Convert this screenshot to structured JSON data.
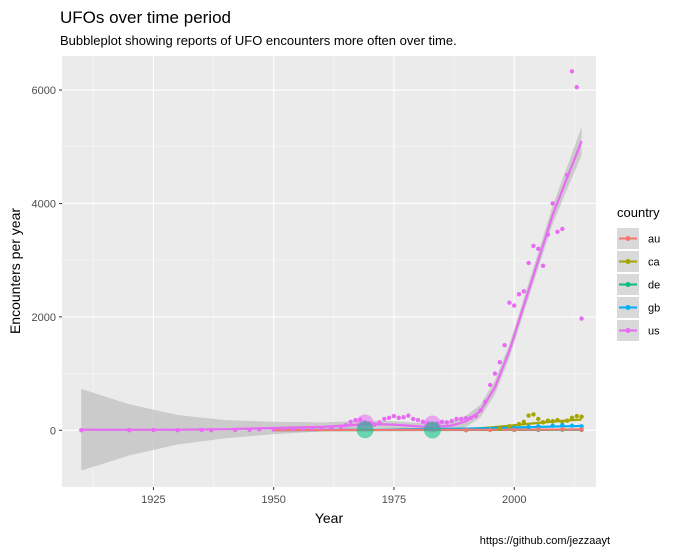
{
  "chart_data": {
    "type": "scatter",
    "title": "UFOs over time period",
    "subtitle": "Bubbleplot showing reports of UFO encounters more often over time.",
    "xlabel": "Year",
    "ylabel": "Encounters per year",
    "caption": "https://github.com/jezzaayt",
    "xlim": [
      1906,
      2017
    ],
    "ylim": [
      -1000,
      6600
    ],
    "x_ticks": [
      1925,
      1950,
      1975,
      2000
    ],
    "y_ticks": [
      0,
      2000,
      4000,
      6000
    ],
    "grid": true,
    "legend": {
      "title": "country",
      "position": "right",
      "entries": [
        "au",
        "ca",
        "de",
        "gb",
        "us"
      ]
    },
    "colors": {
      "au": "#F8766D",
      "ca": "#A3A500",
      "de": "#00BF7D",
      "gb": "#00B0F6",
      "us": "#E76BF3"
    },
    "series": [
      {
        "name": "us",
        "points": [
          [
            1910,
            2
          ],
          [
            1920,
            1
          ],
          [
            1925,
            3
          ],
          [
            1930,
            2
          ],
          [
            1935,
            4
          ],
          [
            1937,
            3
          ],
          [
            1942,
            6
          ],
          [
            1945,
            9
          ],
          [
            1947,
            18
          ],
          [
            1950,
            12
          ],
          [
            1952,
            30
          ],
          [
            1954,
            22
          ],
          [
            1956,
            25
          ],
          [
            1958,
            28
          ],
          [
            1960,
            40
          ],
          [
            1962,
            45
          ],
          [
            1964,
            60
          ],
          [
            1965,
            90
          ],
          [
            1966,
            150
          ],
          [
            1967,
            180
          ],
          [
            1968,
            190
          ],
          [
            1969,
            140
          ],
          [
            1970,
            120
          ],
          [
            1971,
            100
          ],
          [
            1972,
            140
          ],
          [
            1973,
            200
          ],
          [
            1974,
            220
          ],
          [
            1975,
            250
          ],
          [
            1976,
            220
          ],
          [
            1977,
            230
          ],
          [
            1978,
            260
          ],
          [
            1979,
            200
          ],
          [
            1980,
            180
          ],
          [
            1981,
            150
          ],
          [
            1982,
            130
          ],
          [
            1983,
            110
          ],
          [
            1984,
            120
          ],
          [
            1985,
            150
          ],
          [
            1986,
            140
          ],
          [
            1987,
            160
          ],
          [
            1988,
            200
          ],
          [
            1989,
            200
          ],
          [
            1990,
            210
          ],
          [
            1991,
            220
          ],
          [
            1992,
            250
          ],
          [
            1993,
            350
          ],
          [
            1994,
            500
          ],
          [
            1995,
            800
          ],
          [
            1996,
            1000
          ],
          [
            1997,
            1200
          ],
          [
            1998,
            1500
          ],
          [
            1999,
            2250
          ],
          [
            2000,
            2200
          ],
          [
            2001,
            2400
          ],
          [
            2002,
            2450
          ],
          [
            2003,
            2950
          ],
          [
            2004,
            3250
          ],
          [
            2005,
            3200
          ],
          [
            2006,
            2900
          ],
          [
            2007,
            3450
          ],
          [
            2008,
            4000
          ],
          [
            2009,
            3500
          ],
          [
            2010,
            3550
          ],
          [
            2011,
            4500
          ],
          [
            2012,
            6330
          ],
          [
            2013,
            6050
          ],
          [
            2014,
            1970
          ]
        ],
        "fit": [
          [
            1910,
            10
          ],
          [
            1920,
            8
          ],
          [
            1930,
            10
          ],
          [
            1940,
            20
          ],
          [
            1950,
            40
          ],
          [
            1960,
            60
          ],
          [
            1965,
            85
          ],
          [
            1970,
            110
          ],
          [
            1975,
            100
          ],
          [
            1980,
            70
          ],
          [
            1983,
            55
          ],
          [
            1987,
            85
          ],
          [
            1990,
            160
          ],
          [
            1993,
            340
          ],
          [
            1996,
            760
          ],
          [
            1999,
            1400
          ],
          [
            2002,
            2200
          ],
          [
            2005,
            3000
          ],
          [
            2008,
            3800
          ],
          [
            2011,
            4450
          ],
          [
            2014,
            5100
          ]
        ],
        "fit_band_halfwidth": [
          [
            1910,
            720
          ],
          [
            1920,
            450
          ],
          [
            1930,
            260
          ],
          [
            1940,
            160
          ],
          [
            1950,
            110
          ],
          [
            1960,
            80
          ],
          [
            1970,
            60
          ],
          [
            1980,
            60
          ],
          [
            1985,
            70
          ],
          [
            1990,
            100
          ],
          [
            1995,
            120
          ],
          [
            2000,
            120
          ],
          [
            2005,
            140
          ],
          [
            2010,
            180
          ],
          [
            2014,
            250
          ]
        ],
        "bubbles": [
          [
            1969,
            130
          ],
          [
            1983,
            110
          ]
        ]
      },
      {
        "name": "ca",
        "points": [
          [
            1995,
            20
          ],
          [
            1997,
            30
          ],
          [
            1999,
            70
          ],
          [
            2001,
            110
          ],
          [
            2002,
            150
          ],
          [
            2003,
            260
          ],
          [
            2004,
            280
          ],
          [
            2005,
            200
          ],
          [
            2006,
            140
          ],
          [
            2007,
            170
          ],
          [
            2008,
            160
          ],
          [
            2009,
            180
          ],
          [
            2010,
            150
          ],
          [
            2011,
            170
          ],
          [
            2012,
            220
          ],
          [
            2013,
            250
          ],
          [
            2014,
            240
          ]
        ],
        "fit": [
          [
            1986,
            5
          ],
          [
            1990,
            20
          ],
          [
            1995,
            50
          ],
          [
            2000,
            90
          ],
          [
            2005,
            130
          ],
          [
            2010,
            165
          ],
          [
            2014,
            190
          ]
        ]
      },
      {
        "name": "gb",
        "points": [
          [
            1990,
            10
          ],
          [
            1995,
            20
          ],
          [
            2000,
            40
          ],
          [
            2003,
            60
          ],
          [
            2005,
            70
          ],
          [
            2008,
            80
          ],
          [
            2010,
            90
          ],
          [
            2012,
            80
          ],
          [
            2014,
            70
          ]
        ],
        "fit": [
          [
            1950,
            5
          ],
          [
            1970,
            10
          ],
          [
            1990,
            30
          ],
          [
            2000,
            50
          ],
          [
            2010,
            70
          ],
          [
            2014,
            75
          ]
        ]
      },
      {
        "name": "de",
        "points": [
          [
            1990,
            2
          ],
          [
            2000,
            5
          ],
          [
            2005,
            8
          ],
          [
            2010,
            10
          ],
          [
            2014,
            8
          ]
        ],
        "fit": [
          [
            1950,
            2
          ],
          [
            2000,
            6
          ],
          [
            2014,
            8
          ]
        ],
        "bubbles": [
          [
            1969,
            10
          ],
          [
            1983,
            5
          ]
        ]
      },
      {
        "name": "au",
        "points": [
          [
            1990,
            3
          ],
          [
            1995,
            6
          ],
          [
            2000,
            10
          ],
          [
            2005,
            15
          ],
          [
            2010,
            18
          ],
          [
            2014,
            15
          ]
        ],
        "fit": [
          [
            1950,
            3
          ],
          [
            2000,
            10
          ],
          [
            2014,
            15
          ]
        ]
      }
    ]
  }
}
